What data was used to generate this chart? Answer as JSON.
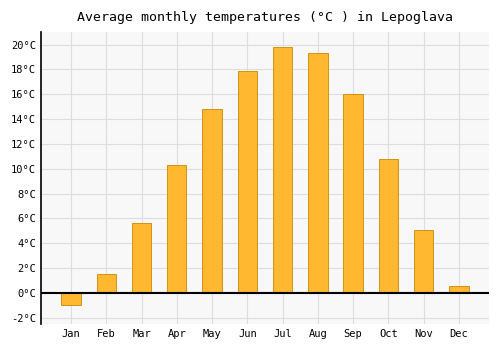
{
  "months": [
    "Jan",
    "Feb",
    "Mar",
    "Apr",
    "May",
    "Jun",
    "Jul",
    "Aug",
    "Sep",
    "Oct",
    "Nov",
    "Dec"
  ],
  "values": [
    -1.0,
    1.5,
    5.6,
    10.3,
    14.8,
    17.9,
    19.8,
    19.3,
    16.0,
    10.8,
    5.1,
    0.6
  ],
  "bar_color": "#FFB830",
  "bar_edge_color": "#CC8800",
  "title": "Average monthly temperatures (°C ) in Lepoglava",
  "ylim": [
    -2.5,
    21.0
  ],
  "yticks": [
    -2,
    0,
    2,
    4,
    6,
    8,
    10,
    12,
    14,
    16,
    18,
    20
  ],
  "background_color": "#FFFFFF",
  "plot_bg_color": "#F8F8F8",
  "grid_color": "#DDDDDD",
  "title_fontsize": 9.5,
  "tick_fontsize": 7.5,
  "bar_width": 0.55
}
